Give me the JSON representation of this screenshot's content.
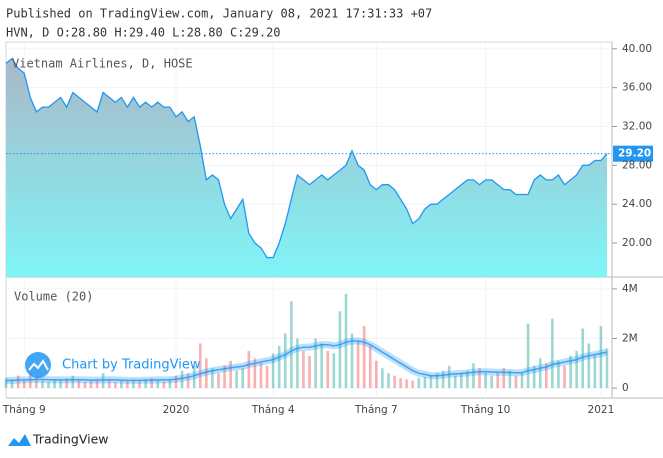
{
  "header": {
    "published": "Published on TradingView.com, January 08, 2021 17:31:33 +07",
    "ohlc": "HVN, D O:28.80 H:29.40 L:28.80 C:29.20"
  },
  "chart_data": [
    {
      "type": "area",
      "title": "Vietnam Airlines, D, HOSE",
      "color": "#2196f3",
      "fill_colors": [
        "#aab8c8",
        "#7ff5f7"
      ],
      "categories": [
        null,
        null,
        null,
        "Tháng 9",
        null,
        null,
        null,
        null,
        null,
        null,
        null,
        null,
        null,
        null,
        null,
        null,
        null,
        null,
        null,
        null,
        null,
        null,
        null,
        null,
        null,
        null,
        null,
        null,
        "2020",
        null,
        null,
        null,
        null,
        null,
        null,
        null,
        null,
        null,
        null,
        null,
        null,
        null,
        null,
        null,
        "Tháng 4",
        null,
        null,
        null,
        null,
        null,
        null,
        null,
        null,
        null,
        null,
        null,
        null,
        null,
        null,
        null,
        null,
        "Tháng 7",
        null,
        null,
        null,
        null,
        null,
        null,
        null,
        null,
        null,
        null,
        null,
        null,
        null,
        null,
        null,
        null,
        null,
        "Tháng 10",
        null,
        null,
        null,
        null,
        null,
        null,
        null,
        null,
        null,
        null,
        null,
        null,
        null,
        null,
        null,
        null,
        null,
        null,
        "2021",
        null
      ],
      "values": [
        38.5,
        39,
        38,
        37.5,
        35,
        33.5,
        34,
        34,
        34.5,
        35,
        34,
        35.5,
        35,
        34.5,
        34,
        33.5,
        35.5,
        35,
        34.5,
        35,
        34,
        35,
        34,
        34.5,
        34,
        34.5,
        34,
        34,
        33,
        33.5,
        32.5,
        33,
        30,
        26.5,
        27,
        26.5,
        24,
        22.5,
        23.5,
        24.5,
        21,
        20,
        19.5,
        18.5,
        18.5,
        20,
        22,
        24.5,
        27,
        26.5,
        26,
        26.5,
        27,
        26.5,
        27,
        27.5,
        28,
        29.5,
        28,
        27.5,
        26,
        25.5,
        26,
        26,
        25.5,
        24.5,
        23.5,
        22,
        22.5,
        23.5,
        24,
        24,
        24.5,
        25,
        25.5,
        26,
        26.5,
        26.5,
        26,
        26.5,
        26.5,
        26,
        25.5,
        25.5,
        25,
        25,
        25,
        26.5,
        27,
        26.5,
        26.5,
        27,
        26,
        26.5,
        27,
        28,
        28,
        28.5,
        28.5,
        29.2
      ],
      "ylim": [
        16.5,
        40.7
      ],
      "yticks": [
        {
          "value": 20,
          "label": "20.00"
        },
        {
          "value": 24,
          "label": "24.00"
        },
        {
          "value": 28,
          "label": "28.00"
        },
        {
          "value": 32,
          "label": "32.00"
        },
        {
          "value": 36,
          "label": "36.00"
        },
        {
          "value": 40,
          "label": "40.00"
        }
      ],
      "price_line": {
        "value": 29.2,
        "label": "29.20"
      }
    },
    {
      "type": "bar",
      "title": "Volume (20)",
      "watermark": "Chart by TradingView",
      "up_color": "#26a69a",
      "down_color": "#ef5350",
      "values": [
        400000,
        350000,
        500000,
        300000,
        600000,
        450000,
        300000,
        250000,
        350000,
        300000,
        400000,
        500000,
        300000,
        250000,
        300000,
        350000,
        600000,
        300000,
        250000,
        300000,
        280000,
        320000,
        300000,
        350000,
        400000,
        300000,
        250000,
        350000,
        500000,
        700000,
        600000,
        900000,
        1800000,
        1200000,
        800000,
        600000,
        900000,
        1100000,
        700000,
        800000,
        1500000,
        1200000,
        1000000,
        900000,
        1400000,
        1700000,
        2200000,
        3500000,
        2000000,
        1500000,
        1300000,
        2000000,
        1800000,
        1500000,
        1400000,
        3100000,
        3800000,
        2200000,
        1900000,
        2500000,
        1700000,
        1100000,
        800000,
        600000,
        500000,
        400000,
        350000,
        300000,
        400000,
        450000,
        500000,
        600000,
        700000,
        900000,
        500000,
        600000,
        700000,
        1000000,
        800000,
        600000,
        500000,
        600000,
        800000,
        700000,
        500000,
        600000,
        2600000,
        900000,
        1200000,
        1000000,
        2800000,
        1100000,
        900000,
        1300000,
        1500000,
        2400000,
        1800000,
        1300000,
        2500000,
        1600000
      ],
      "ma": {
        "color": "#2196f3",
        "values": [
          300000,
          310000,
          320000,
          330000,
          340000,
          350000,
          350000,
          340000,
          340000,
          330000,
          330000,
          340000,
          340000,
          330000,
          320000,
          320000,
          330000,
          340000,
          330000,
          320000,
          310000,
          310000,
          310000,
          320000,
          320000,
          330000,
          330000,
          340000,
          360000,
          400000,
          440000,
          500000,
          580000,
          650000,
          700000,
          740000,
          780000,
          820000,
          850000,
          880000,
          950000,
          1000000,
          1050000,
          1100000,
          1150000,
          1250000,
          1350000,
          1500000,
          1600000,
          1650000,
          1650000,
          1700000,
          1750000,
          1750000,
          1700000,
          1750000,
          1850000,
          1900000,
          1900000,
          1850000,
          1750000,
          1600000,
          1450000,
          1300000,
          1150000,
          1000000,
          850000,
          700000,
          600000,
          550000,
          500000,
          500000,
          520000,
          550000,
          570000,
          590000,
          610000,
          640000,
          660000,
          660000,
          650000,
          640000,
          640000,
          630000,
          620000,
          620000,
          700000,
          740000,
          800000,
          850000,
          950000,
          1000000,
          1050000,
          1100000,
          1150000,
          1250000,
          1300000,
          1350000,
          1400000,
          1450000
        ]
      },
      "ylim": [
        -400000,
        4480000
      ],
      "yticks": [
        0,
        {
          "value": 2000000,
          "label": "2M"
        },
        {
          "value": 4000000,
          "label": "4M"
        }
      ]
    }
  ],
  "footer": {
    "logo": "TradingView"
  }
}
